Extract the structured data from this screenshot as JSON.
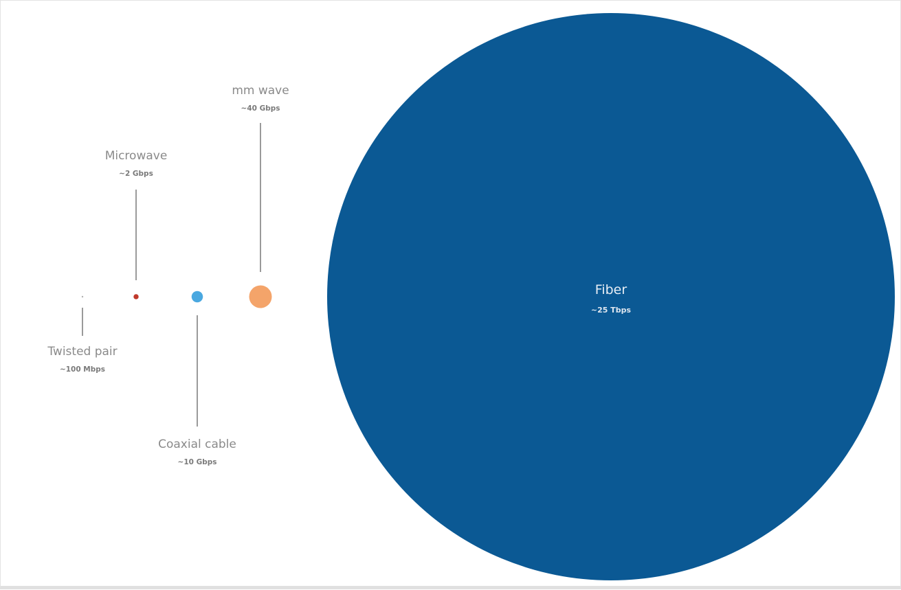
{
  "chart_data": {
    "type": "bubble",
    "title": "",
    "xlabel": "",
    "ylabel": "",
    "legend": "none",
    "grid": false,
    "unit_note": "bubble area proportional to bandwidth",
    "items": [
      {
        "name": "Twisted pair",
        "value_label": "~100 Mbps",
        "value_gbps": 0.1,
        "color": "#b0b0b0"
      },
      {
        "name": "Microwave",
        "value_label": "~2 Gbps",
        "value_gbps": 2,
        "color": "#c0392b"
      },
      {
        "name": "Coaxial cable",
        "value_label": "~10 Gbps",
        "value_gbps": 10,
        "color": "#4aa8e0"
      },
      {
        "name": "mm wave",
        "value_label": "~40 Gbps",
        "value_gbps": 40,
        "color": "#f4a46a"
      },
      {
        "name": "Fiber",
        "value_label": "~25 Tbps",
        "value_gbps": 25000,
        "color": "#0b5994"
      }
    ]
  }
}
